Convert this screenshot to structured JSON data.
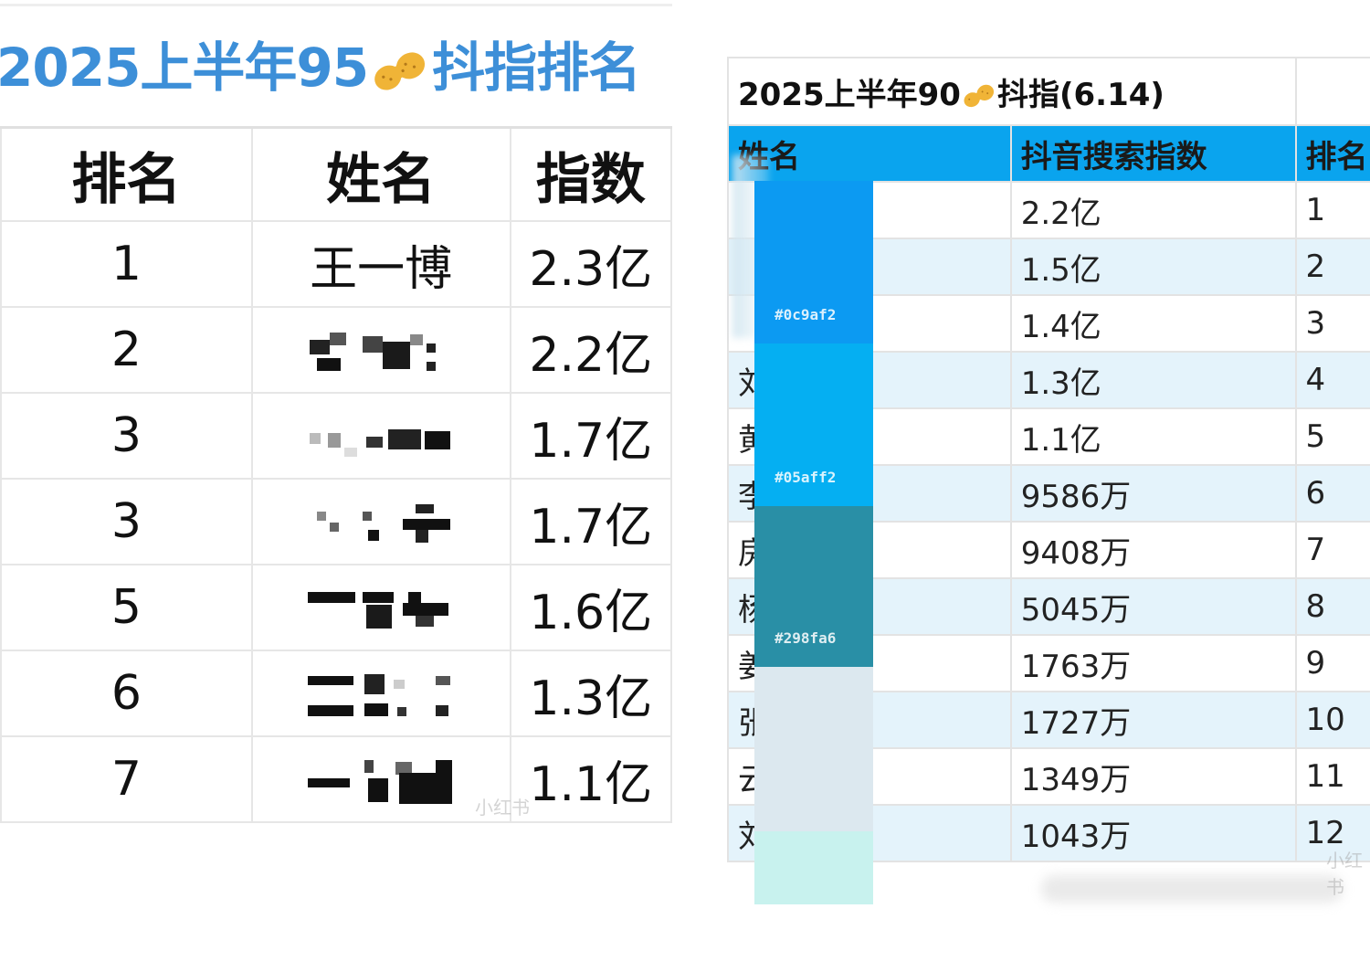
{
  "left": {
    "title_prefix": "2025上半年95",
    "title_suffix": "抖指排名",
    "headers": [
      "排名",
      "姓名",
      "指数"
    ],
    "rows": [
      {
        "rank": "1",
        "name": "王一博",
        "index": "2.3亿"
      },
      {
        "rank": "2",
        "name": "",
        "index": "2.2亿"
      },
      {
        "rank": "3",
        "name": "",
        "index": "1.7亿"
      },
      {
        "rank": "3",
        "name": "",
        "index": "1.7亿"
      },
      {
        "rank": "5",
        "name": "",
        "index": "1.6亿"
      },
      {
        "rank": "6",
        "name": "",
        "index": "1.3亿"
      },
      {
        "rank": "7",
        "name": "",
        "index": "1.1亿"
      }
    ]
  },
  "right": {
    "title_prefix": "2025上半年90",
    "title_suffix": "抖指(6.14)",
    "headers": [
      "姓名",
      "抖音搜索指数",
      "排名"
    ],
    "rows": [
      {
        "name_partial": "",
        "index": "2.2亿",
        "rank": "1"
      },
      {
        "name_partial": "",
        "index": "1.5亿",
        "rank": "2"
      },
      {
        "name_partial": "",
        "index": "1.4亿",
        "rank": "3"
      },
      {
        "name_partial": "刘",
        "index": "1.3亿",
        "rank": "4"
      },
      {
        "name_partial": "黄",
        "index": "1.1亿",
        "rank": "5"
      },
      {
        "name_partial": "李",
        "index": "9586万",
        "rank": "6"
      },
      {
        "name_partial": "房",
        "index": "9408万",
        "rank": "7"
      },
      {
        "name_partial": "杨",
        "index": "5045万",
        "rank": "8"
      },
      {
        "name_partial": "姜",
        "index": "1763万",
        "rank": "9"
      },
      {
        "name_partial": "张",
        "index": "1727万",
        "rank": "10"
      },
      {
        "name_partial": "云",
        "index": "1349万",
        "rank": "11"
      },
      {
        "name_partial": "刘",
        "index": "1043万",
        "rank": "12"
      }
    ]
  },
  "swatches": [
    {
      "hex": "#0c9af2",
      "label": "#0c9af2"
    },
    {
      "hex": "#05aff2",
      "label": "#05aff2"
    },
    {
      "hex": "#298fa6",
      "label": "#298fa6"
    },
    {
      "hex": "#dce8ef",
      "label": ""
    },
    {
      "hex": "#c8f2ee",
      "label": ""
    }
  ],
  "colors": {
    "left_title": "#3d8fd8",
    "right_header": "#0aa4ee",
    "zebra": "#e4f3fb"
  },
  "watermarks": [
    "小红书"
  ]
}
